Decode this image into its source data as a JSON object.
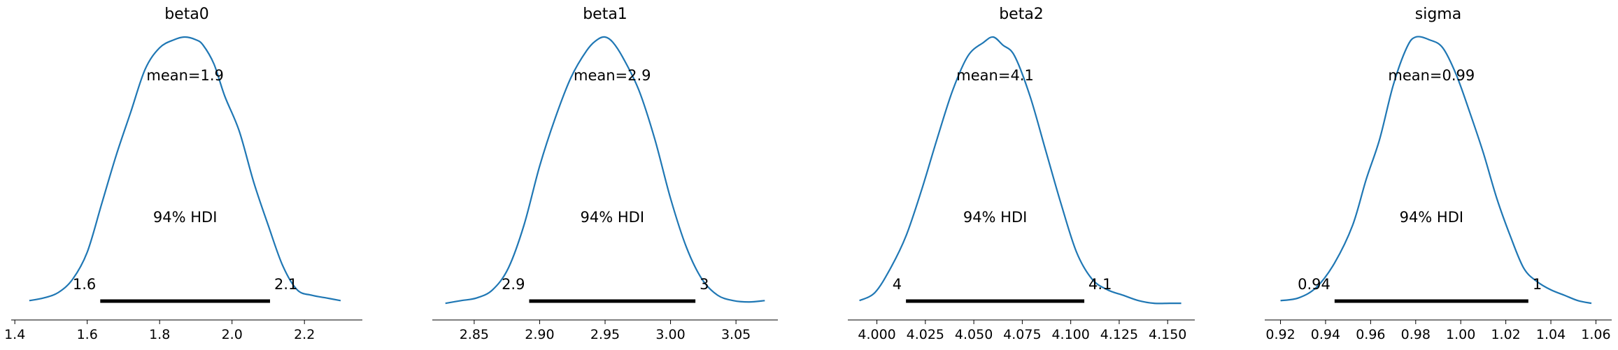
{
  "chart_data": [
    {
      "type": "area",
      "title": "beta0",
      "mean_label": "mean=1.9",
      "hdi_label": "94% HDI",
      "hdi_low_label": "1.6",
      "hdi_high_label": "2.1",
      "hdi": [
        1.636,
        2.105
      ],
      "xlim": [
        1.39,
        2.36
      ],
      "xticks": [
        1.4,
        1.6,
        1.8,
        2.0,
        2.2
      ],
      "xtick_labels": [
        "1.4",
        "1.6",
        "1.8",
        "2.0",
        "2.2"
      ],
      "x": [
        1.44,
        1.48,
        1.52,
        1.56,
        1.6,
        1.64,
        1.68,
        1.72,
        1.76,
        1.8,
        1.84,
        1.87,
        1.9,
        1.92,
        1.95,
        1.98,
        2.02,
        2.06,
        2.1,
        2.14,
        2.18,
        2.22,
        2.26,
        2.3
      ],
      "y": [
        0.02,
        0.03,
        0.05,
        0.1,
        0.2,
        0.38,
        0.56,
        0.72,
        0.88,
        0.96,
        0.99,
        1.0,
        0.99,
        0.97,
        0.9,
        0.78,
        0.65,
        0.46,
        0.3,
        0.15,
        0.06,
        0.04,
        0.03,
        0.02
      ],
      "color": "#1f77b4"
    },
    {
      "type": "area",
      "title": "beta1",
      "mean_label": "mean=2.9",
      "hdi_label": "94% HDI",
      "hdi_low_label": "2.9",
      "hdi_high_label": "3",
      "hdi": [
        2.892,
        3.019
      ],
      "xlim": [
        2.818,
        3.082
      ],
      "xticks": [
        2.85,
        2.9,
        2.95,
        3.0,
        3.05
      ],
      "xtick_labels": [
        "2.85",
        "2.90",
        "2.95",
        "3.00",
        "3.05"
      ],
      "x": [
        2.828,
        2.84,
        2.852,
        2.864,
        2.876,
        2.888,
        2.9,
        2.912,
        2.924,
        2.936,
        2.944,
        2.95,
        2.956,
        2.964,
        2.976,
        2.988,
        3.0,
        3.012,
        3.024,
        3.036,
        3.048,
        3.06,
        3.072
      ],
      "y": [
        0.01,
        0.02,
        0.03,
        0.06,
        0.14,
        0.3,
        0.52,
        0.7,
        0.85,
        0.95,
        0.99,
        1.0,
        0.98,
        0.92,
        0.8,
        0.62,
        0.4,
        0.22,
        0.1,
        0.04,
        0.02,
        0.015,
        0.02
      ],
      "color": "#1f77b4"
    },
    {
      "type": "area",
      "title": "beta2",
      "mean_label": "mean=4.1",
      "hdi_label": "94% HDI",
      "hdi_low_label": "4",
      "hdi_high_label": "4.1",
      "hdi": [
        4.015,
        4.107
      ],
      "xlim": [
        3.985,
        4.164
      ],
      "xticks": [
        4.0,
        4.025,
        4.05,
        4.075,
        4.1,
        4.125,
        4.15
      ],
      "xtick_labels": [
        "4.000",
        "4.025",
        "4.050",
        "4.075",
        "4.100",
        "4.125",
        "4.150"
      ],
      "x": [
        3.991,
        3.999,
        4.007,
        4.015,
        4.023,
        4.031,
        4.039,
        4.047,
        4.055,
        4.06,
        4.065,
        4.071,
        4.079,
        4.087,
        4.095,
        4.103,
        4.111,
        4.119,
        4.127,
        4.135,
        4.143,
        4.151,
        4.157
      ],
      "y": [
        0.02,
        0.05,
        0.14,
        0.26,
        0.43,
        0.62,
        0.8,
        0.93,
        0.98,
        1.0,
        0.97,
        0.93,
        0.78,
        0.58,
        0.38,
        0.2,
        0.1,
        0.06,
        0.04,
        0.02,
        0.01,
        0.01,
        0.01
      ],
      "color": "#1f77b4"
    },
    {
      "type": "area",
      "title": "sigma",
      "mean_label": "mean=0.99",
      "hdi_label": "94% HDI",
      "hdi_low_label": "0.94",
      "hdi_high_label": "1",
      "hdi": [
        0.944,
        1.03
      ],
      "xlim": [
        0.913,
        1.067
      ],
      "xticks": [
        0.92,
        0.94,
        0.96,
        0.98,
        1.0,
        1.02,
        1.04,
        1.06
      ],
      "xtick_labels": [
        "0.92",
        "0.94",
        "0.96",
        "0.98",
        "1.00",
        "1.02",
        "1.04",
        "1.06"
      ],
      "x": [
        0.92,
        0.928,
        0.936,
        0.944,
        0.952,
        0.958,
        0.964,
        0.97,
        0.976,
        0.98,
        0.986,
        0.992,
        0.998,
        1.004,
        1.01,
        1.016,
        1.022,
        1.028,
        1.034,
        1.04,
        1.046,
        1.052,
        1.058
      ],
      "y": [
        0.02,
        0.03,
        0.07,
        0.16,
        0.3,
        0.47,
        0.62,
        0.82,
        0.96,
        1.0,
        0.99,
        0.96,
        0.86,
        0.72,
        0.57,
        0.4,
        0.26,
        0.14,
        0.09,
        0.06,
        0.04,
        0.02,
        0.01
      ],
      "color": "#1f77b4"
    }
  ]
}
